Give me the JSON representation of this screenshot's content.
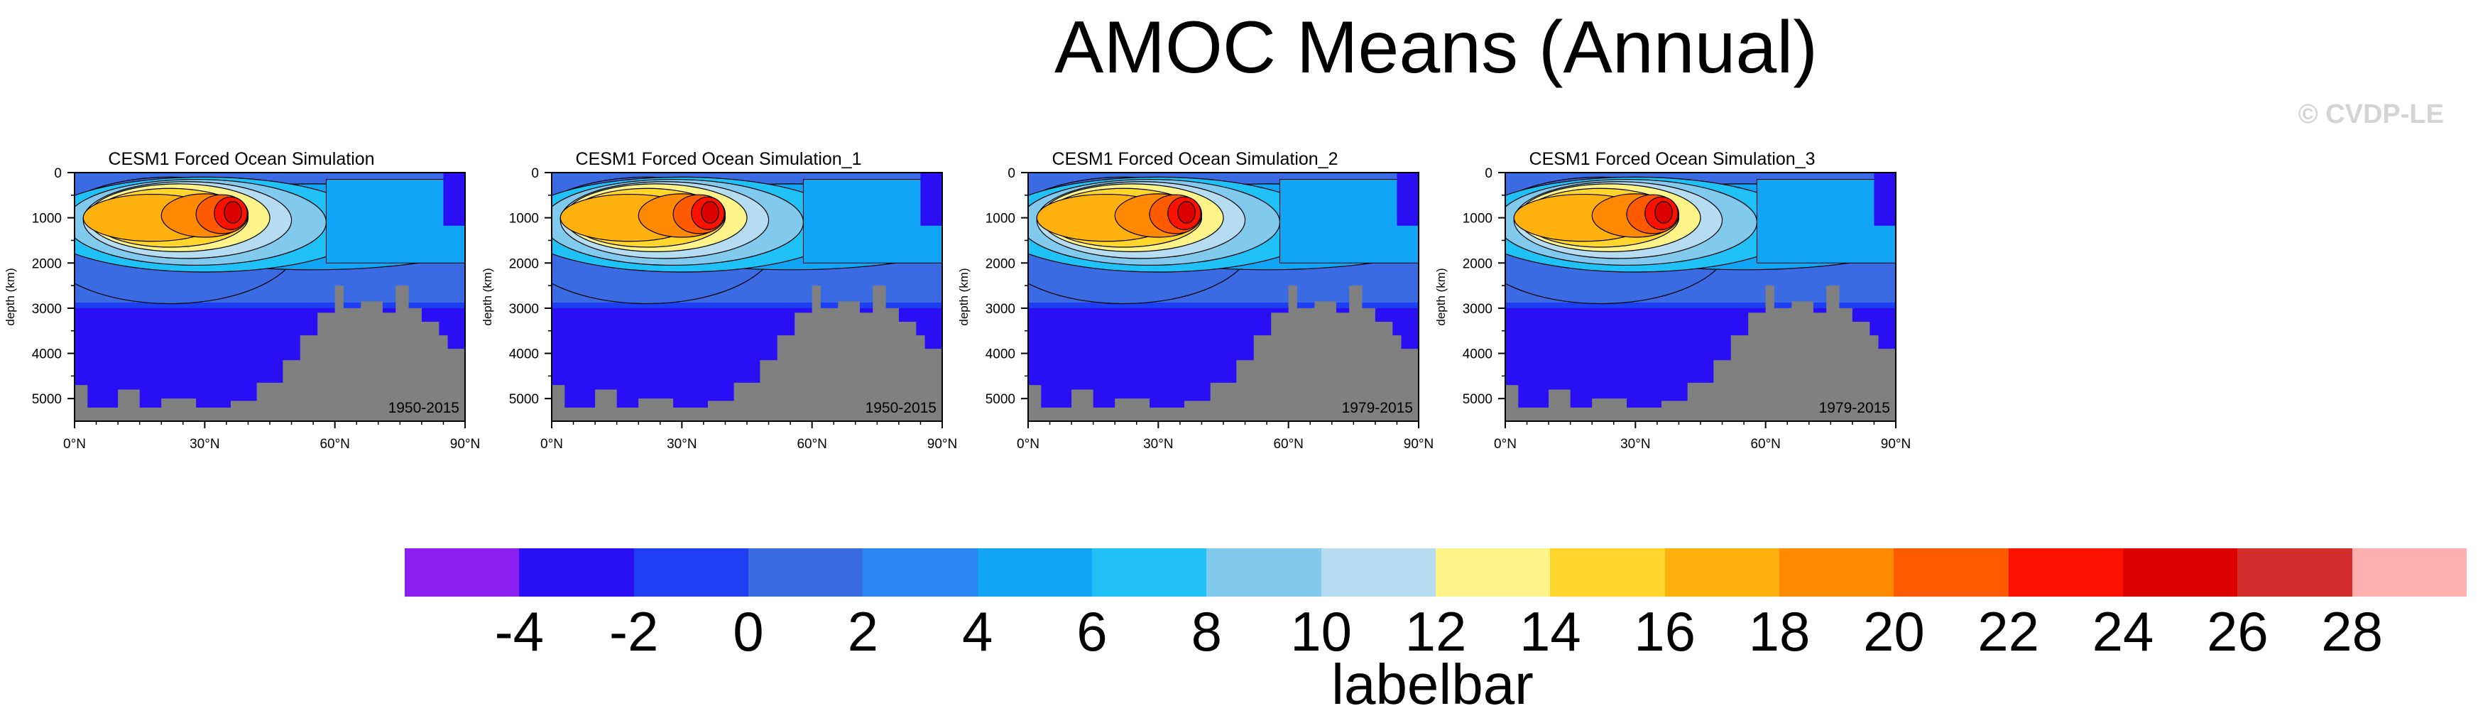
{
  "title": "AMOC Means (Annual)",
  "copyright": "© CVDP-LE",
  "colors": {
    "land": "#808080",
    "labelbar": [
      "#8a1ff0",
      "#2a0ff5",
      "#1e3ef2",
      "#3a6be3",
      "#2b86f2",
      "#12a4f5",
      "#20c1f7",
      "#82c9ee",
      "#b6dcf2",
      "#fff48a",
      "#ffd52e",
      "#ffb20f",
      "#ff8a00",
      "#ff5a00",
      "#ff1100",
      "#dc0000",
      "#d42d2d",
      "#ffafaf"
    ]
  },
  "labelbar": {
    "title": "labelbar",
    "ticks": [
      "-4",
      "-2",
      "0",
      "2",
      "4",
      "6",
      "8",
      "10",
      "12",
      "14",
      "16",
      "18",
      "20",
      "22",
      "24",
      "26",
      "28"
    ]
  },
  "chart_data": [
    {
      "type": "heatmap",
      "title": "CESM1 Forced Ocean Simulation",
      "annotation": "1950-2015",
      "ylabel": "depth (km)",
      "xlabel": "",
      "x_ticks": [
        "0°N",
        "30°N",
        "60°N",
        "90°N"
      ],
      "y_ticks": [
        "0",
        "1000",
        "2000",
        "3000",
        "4000",
        "5000"
      ],
      "xlim": [
        0,
        90
      ],
      "ylim": [
        5500,
        0
      ],
      "max_value": 26,
      "max_location": [
        36,
        900
      ]
    },
    {
      "type": "heatmap",
      "title": "CESM1 Forced Ocean Simulation_1",
      "annotation": "1950-2015",
      "ylabel": "depth (km)",
      "xlabel": "",
      "x_ticks": [
        "0°N",
        "30°N",
        "60°N",
        "90°N"
      ],
      "y_ticks": [
        "0",
        "1000",
        "2000",
        "3000",
        "4000",
        "5000"
      ],
      "xlim": [
        0,
        90
      ],
      "ylim": [
        5500,
        0
      ],
      "max_value": 26,
      "max_location": [
        37,
        900
      ]
    },
    {
      "type": "heatmap",
      "title": "CESM1 Forced Ocean Simulation_2",
      "annotation": "1979-2015",
      "ylabel": "depth (km)",
      "xlabel": "",
      "x_ticks": [
        "0°N",
        "30°N",
        "60°N",
        "90°N"
      ],
      "y_ticks": [
        "0",
        "1000",
        "2000",
        "3000",
        "4000",
        "5000"
      ],
      "xlim": [
        0,
        90
      ],
      "ylim": [
        5500,
        0
      ],
      "max_value": 26,
      "max_location": [
        37,
        900
      ]
    },
    {
      "type": "heatmap",
      "title": "CESM1 Forced Ocean Simulation_3",
      "annotation": "1979-2015",
      "ylabel": "depth (km)",
      "xlabel": "",
      "x_ticks": [
        "0°N",
        "30°N",
        "60°N",
        "90°N"
      ],
      "y_ticks": [
        "0",
        "1000",
        "2000",
        "3000",
        "4000",
        "5000"
      ],
      "xlim": [
        0,
        90
      ],
      "ylim": [
        5500,
        0
      ],
      "max_value": 26,
      "max_location": [
        37,
        900
      ]
    }
  ]
}
